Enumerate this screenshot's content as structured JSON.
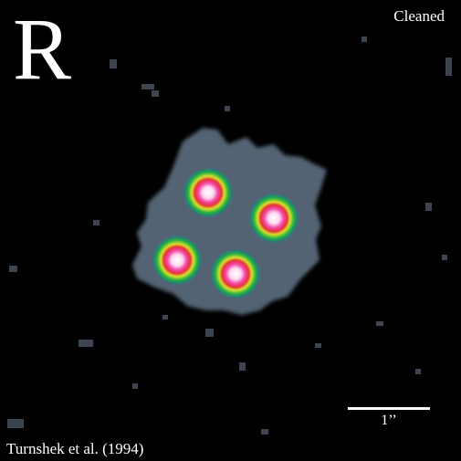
{
  "image": {
    "band_label": "R",
    "processing_label": "Cleaned",
    "credit": "Turnshek et al. (1994)",
    "scale_label": "1’’",
    "colors": {
      "background": "#000000",
      "halo": "#59697a",
      "ring_outer": "#1fae47",
      "ring_mid": "#d6e028",
      "ring_inner": "#e8333a",
      "core": "#ffffff",
      "text": "#ffffff"
    },
    "objects": [
      {
        "name": "quasar-image-a"
      },
      {
        "name": "quasar-image-b"
      },
      {
        "name": "quasar-image-c"
      },
      {
        "name": "quasar-image-d"
      }
    ]
  }
}
